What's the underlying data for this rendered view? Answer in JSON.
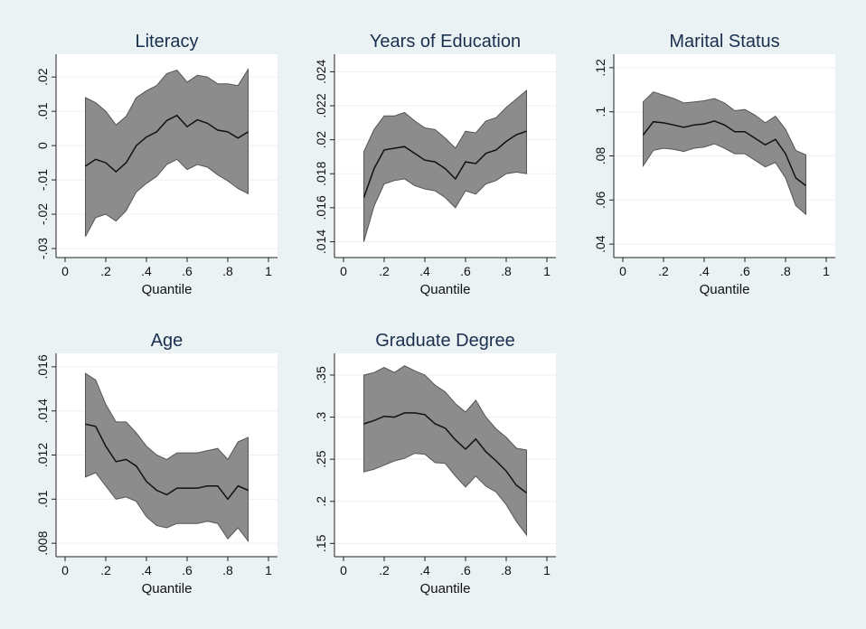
{
  "chart_data": [
    {
      "type": "area",
      "title": "Literacy",
      "xlabel": "Quantile",
      "ylabel": "",
      "xlim": [
        0,
        1
      ],
      "ylim": [
        -0.03,
        0.024
      ],
      "xticks": [
        0,
        0.2,
        0.4,
        0.6,
        0.8,
        1
      ],
      "xtick_labels": [
        "0",
        ".2",
        ".4",
        ".6",
        ".8",
        "1"
      ],
      "yticks": [
        -0.03,
        -0.02,
        -0.01,
        0,
        0.01,
        0.02
      ],
      "ytick_labels": [
        "-.03",
        "-.02",
        "-.01",
        "0",
        ".01",
        ".02"
      ],
      "grid": true,
      "x": [
        0.1,
        0.15,
        0.2,
        0.25,
        0.3,
        0.35,
        0.4,
        0.45,
        0.5,
        0.55,
        0.6,
        0.65,
        0.7,
        0.75,
        0.8,
        0.85,
        0.9
      ],
      "series": [
        {
          "role": "estimate",
          "values": [
            -0.006,
            -0.004,
            -0.005,
            -0.0076,
            -0.005,
            0,
            0.0025,
            0.004,
            0.0073,
            0.0088,
            0.0055,
            0.0075,
            0.0065,
            0.0045,
            0.004,
            0.0022,
            0.004
          ]
        },
        {
          "role": "upper",
          "values": [
            0.014,
            0.0125,
            0.01,
            0.006,
            0.0085,
            0.014,
            0.016,
            0.0175,
            0.021,
            0.022,
            0.0185,
            0.0205,
            0.02,
            0.018,
            0.018,
            0.0175,
            0.0222
          ]
        },
        {
          "role": "lower",
          "values": [
            -0.0265,
            -0.021,
            -0.02,
            -0.022,
            -0.019,
            -0.0135,
            -0.011,
            -0.009,
            -0.0055,
            -0.004,
            -0.007,
            -0.0055,
            -0.0063,
            -0.0085,
            -0.0103,
            -0.0125,
            -0.014
          ]
        }
      ]
    },
    {
      "type": "area",
      "title": "Years of Education",
      "xlabel": "Quantile",
      "ylabel": "",
      "xlim": [
        0,
        1
      ],
      "ylim": [
        0.0136,
        0.0245
      ],
      "xticks": [
        0,
        0.2,
        0.4,
        0.6,
        0.8,
        1
      ],
      "xtick_labels": [
        "0",
        ".2",
        ".4",
        ".6",
        ".8",
        "1"
      ],
      "yticks": [
        0.014,
        0.016,
        0.018,
        0.02,
        0.022,
        0.024
      ],
      "ytick_labels": [
        ".014",
        ".016",
        ".018",
        ".02",
        ".022",
        ".024"
      ],
      "grid": true,
      "x": [
        0.1,
        0.15,
        0.2,
        0.25,
        0.3,
        0.35,
        0.4,
        0.45,
        0.5,
        0.55,
        0.6,
        0.65,
        0.7,
        0.75,
        0.8,
        0.85,
        0.9
      ],
      "series": [
        {
          "role": "estimate",
          "values": [
            0.0166,
            0.0183,
            0.0194,
            0.0195,
            0.0196,
            0.0192,
            0.0188,
            0.0187,
            0.0183,
            0.0177,
            0.0187,
            0.0186,
            0.0192,
            0.0194,
            0.0199,
            0.0203,
            0.0205
          ]
        },
        {
          "role": "upper",
          "values": [
            0.0193,
            0.0206,
            0.0214,
            0.0214,
            0.0216,
            0.0211,
            0.0207,
            0.0206,
            0.0201,
            0.0195,
            0.0205,
            0.0204,
            0.0211,
            0.0213,
            0.0219,
            0.0224,
            0.0229
          ]
        },
        {
          "role": "lower",
          "values": [
            0.014,
            0.0161,
            0.0174,
            0.0176,
            0.0177,
            0.0173,
            0.0171,
            0.017,
            0.0166,
            0.016,
            0.017,
            0.0168,
            0.0174,
            0.0176,
            0.018,
            0.0181,
            0.018
          ]
        }
      ]
    },
    {
      "type": "area",
      "title": "Marital Status",
      "xlabel": "Quantile",
      "ylabel": "",
      "xlim": [
        0,
        1
      ],
      "ylim": [
        0.038,
        0.122
      ],
      "xticks": [
        0,
        0.2,
        0.4,
        0.6,
        0.8,
        1
      ],
      "xtick_labels": [
        "0",
        ".2",
        ".4",
        ".6",
        ".8",
        "1"
      ],
      "yticks": [
        0.04,
        0.06,
        0.08,
        0.1,
        0.12
      ],
      "ytick_labels": [
        ".04",
        ".06",
        ".08",
        ".1",
        ".12"
      ],
      "grid": true,
      "x": [
        0.1,
        0.15,
        0.2,
        0.25,
        0.3,
        0.35,
        0.4,
        0.45,
        0.5,
        0.55,
        0.6,
        0.65,
        0.7,
        0.75,
        0.8,
        0.85,
        0.9
      ],
      "series": [
        {
          "role": "estimate",
          "values": [
            0.0895,
            0.0955,
            0.095,
            0.094,
            0.093,
            0.094,
            0.0945,
            0.0958,
            0.094,
            0.091,
            0.091,
            0.088,
            0.085,
            0.0875,
            0.081,
            0.07,
            0.0665
          ]
        },
        {
          "role": "upper",
          "values": [
            0.1045,
            0.109,
            0.1075,
            0.106,
            0.104,
            0.1045,
            0.105,
            0.106,
            0.104,
            0.1005,
            0.101,
            0.0985,
            0.095,
            0.098,
            0.092,
            0.0825,
            0.0805
          ]
        },
        {
          "role": "lower",
          "values": [
            0.0755,
            0.0825,
            0.0835,
            0.083,
            0.082,
            0.0835,
            0.084,
            0.0855,
            0.0835,
            0.081,
            0.081,
            0.078,
            0.075,
            0.077,
            0.07,
            0.0575,
            0.0535
          ]
        }
      ]
    },
    {
      "type": "area",
      "title": "Age",
      "xlabel": "Quantile",
      "ylabel": "",
      "xlim": [
        0,
        1
      ],
      "ylim": [
        0.0078,
        0.0162
      ],
      "xticks": [
        0,
        0.2,
        0.4,
        0.6,
        0.8,
        1
      ],
      "xtick_labels": [
        "0",
        ".2",
        ".4",
        ".6",
        ".8",
        "1"
      ],
      "yticks": [
        0.008,
        0.01,
        0.012,
        0.014,
        0.016
      ],
      "ytick_labels": [
        ".008",
        ".01",
        ".012",
        ".014",
        ".016"
      ],
      "grid": true,
      "x": [
        0.1,
        0.15,
        0.2,
        0.25,
        0.3,
        0.35,
        0.4,
        0.45,
        0.5,
        0.55,
        0.6,
        0.65,
        0.7,
        0.75,
        0.8,
        0.85,
        0.9
      ],
      "series": [
        {
          "role": "estimate",
          "values": [
            0.0134,
            0.0133,
            0.0124,
            0.0117,
            0.0118,
            0.0115,
            0.0108,
            0.0104,
            0.0102,
            0.0105,
            0.0105,
            0.0105,
            0.0106,
            0.0106,
            0.01,
            0.0106,
            0.0104
          ]
        },
        {
          "role": "upper",
          "values": [
            0.0157,
            0.0154,
            0.0143,
            0.0135,
            0.0135,
            0.013,
            0.0124,
            0.012,
            0.0118,
            0.0121,
            0.0121,
            0.0121,
            0.0122,
            0.0123,
            0.0118,
            0.0126,
            0.0128
          ]
        },
        {
          "role": "lower",
          "values": [
            0.011,
            0.0112,
            0.0106,
            0.01,
            0.0101,
            0.0099,
            0.0092,
            0.0088,
            0.0087,
            0.0089,
            0.0089,
            0.0089,
            0.009,
            0.0089,
            0.0082,
            0.0087,
            0.0081
          ]
        }
      ]
    },
    {
      "type": "area",
      "title": "Graduate Degree",
      "xlabel": "Quantile",
      "ylabel": "",
      "xlim": [
        0,
        1
      ],
      "ylim": [
        0.145,
        0.365
      ],
      "xticks": [
        0,
        0.2,
        0.4,
        0.6,
        0.8,
        1
      ],
      "xtick_labels": [
        "0",
        ".2",
        ".4",
        ".6",
        ".8",
        "1"
      ],
      "yticks": [
        0.15,
        0.2,
        0.25,
        0.3,
        0.35
      ],
      "ytick_labels": [
        ".15",
        ".2",
        ".25",
        ".3",
        ".35"
      ],
      "grid": true,
      "x": [
        0.1,
        0.15,
        0.2,
        0.25,
        0.3,
        0.35,
        0.4,
        0.45,
        0.5,
        0.55,
        0.6,
        0.65,
        0.7,
        0.75,
        0.8,
        0.85,
        0.9
      ],
      "series": [
        {
          "role": "estimate",
          "values": [
            0.292,
            0.296,
            0.301,
            0.3,
            0.305,
            0.305,
            0.303,
            0.292,
            0.287,
            0.273,
            0.262,
            0.274,
            0.259,
            0.248,
            0.236,
            0.219,
            0.21
          ]
        },
        {
          "role": "upper",
          "values": [
            0.35,
            0.353,
            0.359,
            0.353,
            0.361,
            0.355,
            0.35,
            0.338,
            0.33,
            0.316,
            0.306,
            0.32,
            0.3,
            0.286,
            0.276,
            0.263,
            0.261
          ]
        },
        {
          "role": "lower",
          "values": [
            0.235,
            0.238,
            0.243,
            0.248,
            0.251,
            0.257,
            0.256,
            0.246,
            0.245,
            0.23,
            0.217,
            0.23,
            0.218,
            0.211,
            0.196,
            0.176,
            0.16
          ]
        }
      ]
    }
  ]
}
